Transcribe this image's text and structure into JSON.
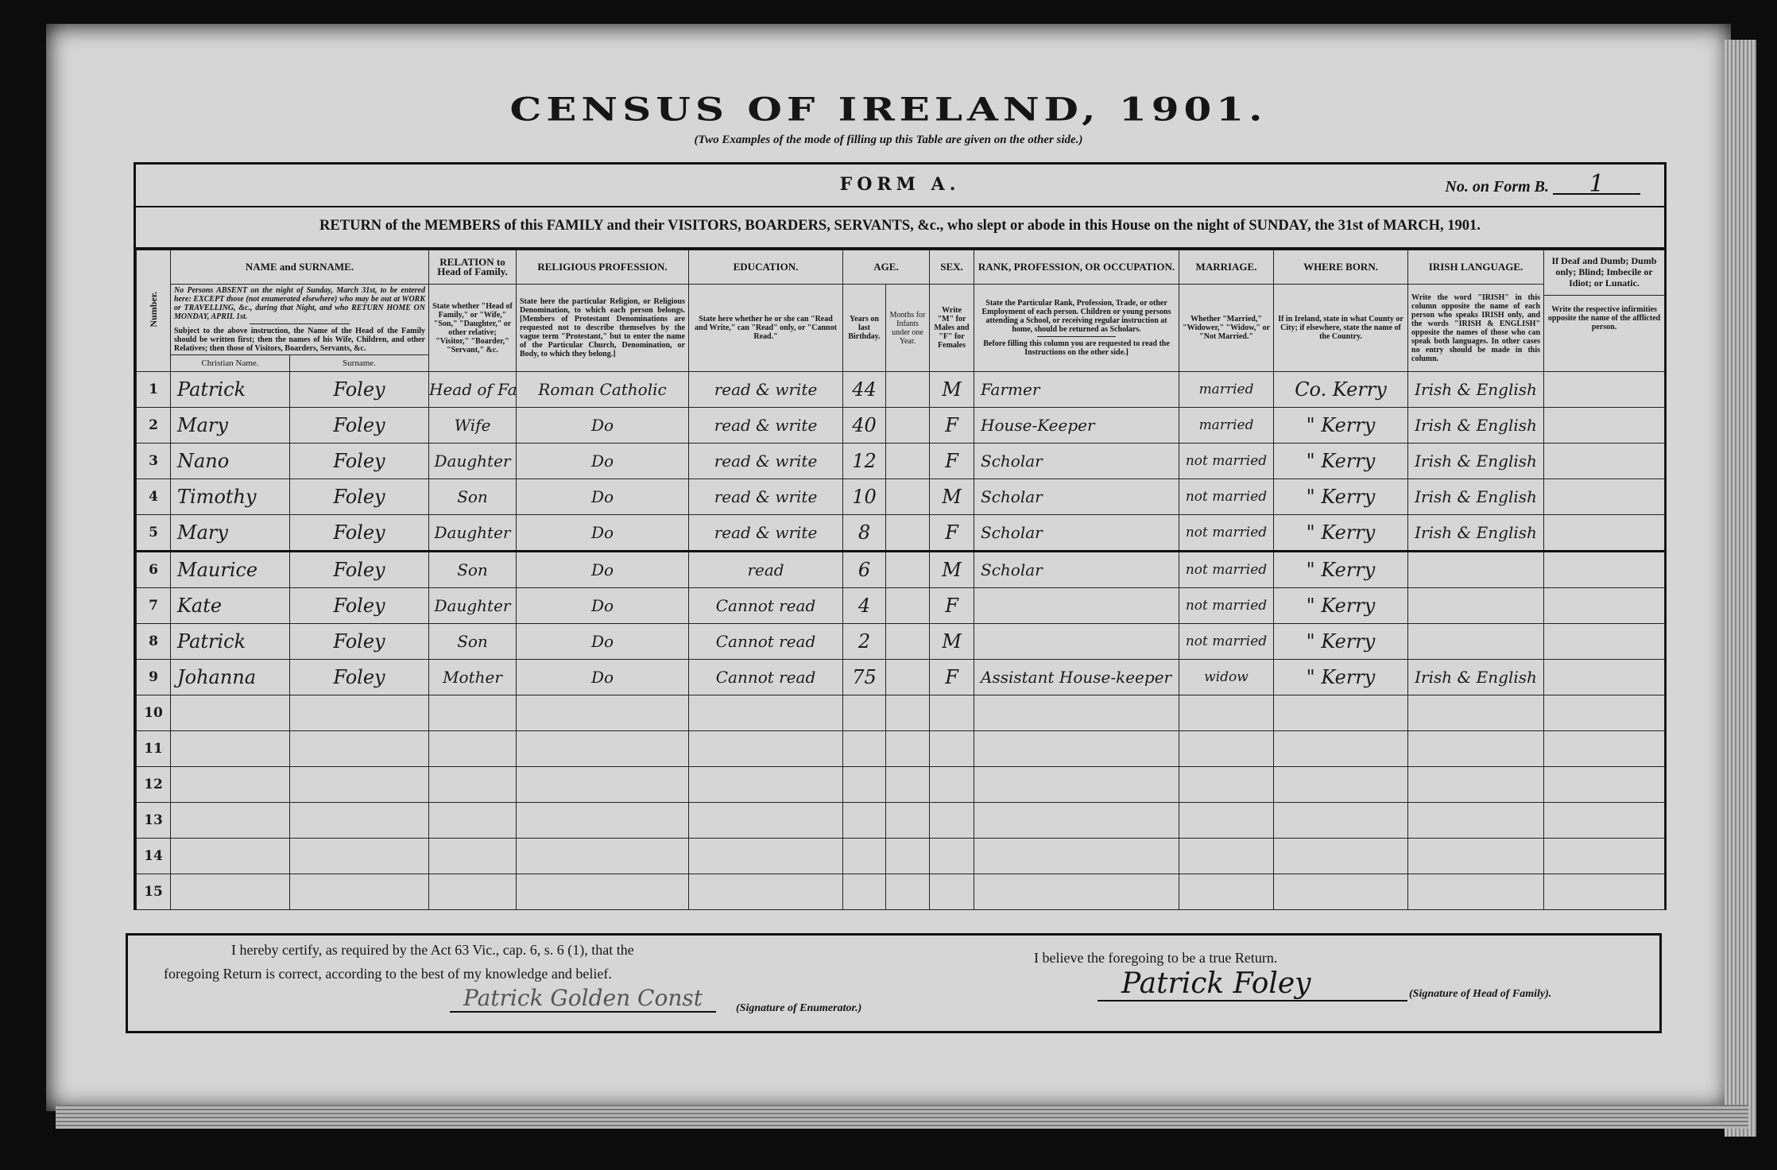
{
  "title": "CENSUS OF IRELAND, 1901.",
  "subtitle": "(Two Examples of the mode of filling up this Table are given on the other side.)",
  "form": {
    "name": "FORM A.",
    "form_b_label": "No. on Form B.",
    "form_b_value": "1",
    "return_line": "RETURN of the MEMBERS of this FAMILY and their VISITORS, BOARDERS, SERVANTS, &c., who slept or abode in this House on the night of SUNDAY, the 31st of MARCH, 1901."
  },
  "headers": {
    "number": "Number.",
    "name": "NAME and SURNAME.",
    "name_instr_1": "No Persons ABSENT on the night of Sunday, March 31st, to be entered here: EXCEPT those (not enumerated elsewhere) who may be out at WORK or TRAVELLING, &c., during that Night, and who RETURN HOME ON MONDAY, APRIL 1st.",
    "name_instr_2": "Subject to the above instruction, the Name of the Head of the Family should be written first; then the names of his Wife, Children, and other Relatives; then those of Visitors, Boarders, Servants, &c.",
    "christian_name": "Christian Name.",
    "surname": "Surname.",
    "relation": "RELATION to Head of Family.",
    "relation_instr": "State whether \"Head of Family,\" or \"Wife,\" \"Son,\" \"Daughter,\" or other relative; \"Visitor,\" \"Boarder,\" \"Servant,\" &c.",
    "religion": "RELIGIOUS PROFESSION.",
    "religion_instr": "State here the particular Religion, or Religious Denomination, to which each person belongs. [Members of Protestant Denominations are requested not to describe themselves by the vague term \"Protestant,\" but to enter the name of the Particular Church, Denomination, or Body, to which they belong.]",
    "education": "EDUCATION.",
    "education_instr": "State here whether he or she can \"Read and Write,\" can \"Read\" only, or \"Cannot Read.\"",
    "age": "AGE.",
    "age_years": "Years on last Birthday.",
    "age_months": "Months for Infants under one Year.",
    "sex": "SEX.",
    "sex_instr": "Write \"M\" for Males and \"F\" for Females",
    "rank": "RANK, PROFESSION, OR OCCUPATION.",
    "rank_instr_1": "State the Particular Rank, Profession, Trade, or other Employment of each person. Children or young persons attending a School, or receiving regular instruction at home, should be returned as Scholars.",
    "rank_instr_2": "Before filling this column you are requested to read the Instructions on the other side.]",
    "marriage": "MARRIAGE.",
    "marriage_instr": "Whether \"Married,\" \"Widower,\" \"Widow,\" or \"Not Married.\"",
    "born": "WHERE BORN.",
    "born_instr": "If in Ireland, state in what County or City; if elsewhere, state the name of the Country.",
    "irish": "IRISH LANGUAGE.",
    "irish_instr": "Write the word \"IRISH\" in this column opposite the name of each person who speaks IRISH only, and the words \"IRISH & ENGLISH\" opposite the names of those who can speak both languages. In other cases no entry should be made in this column.",
    "infirm": "If Deaf and Dumb; Dumb only; Blind; Imbecile or Idiot; or Lunatic.",
    "infirm_instr": "Write the respective infirmities opposite the name of the afflicted person."
  },
  "rows": [
    {
      "no": "1",
      "first": "Patrick",
      "surname": "Foley",
      "relation": "Head of Family",
      "religion": "Roman Catholic",
      "education": "read & write",
      "years": "44",
      "months": "",
      "sex": "M",
      "occupation": "Farmer",
      "marriage": "married",
      "born": "Co. Kerry",
      "irish": "Irish & English",
      "infirm": ""
    },
    {
      "no": "2",
      "first": "Mary",
      "surname": "Foley",
      "relation": "Wife",
      "religion": "Do",
      "education": "read & write",
      "years": "40",
      "months": "",
      "sex": "F",
      "occupation": "House-Keeper",
      "marriage": "married",
      "born": "\" Kerry",
      "irish": "Irish & English",
      "infirm": ""
    },
    {
      "no": "3",
      "first": "Nano",
      "surname": "Foley",
      "relation": "Daughter",
      "religion": "Do",
      "education": "read & write",
      "years": "12",
      "months": "",
      "sex": "F",
      "occupation": "Scholar",
      "marriage": "not married",
      "born": "\" Kerry",
      "irish": "Irish & English",
      "infirm": ""
    },
    {
      "no": "4",
      "first": "Timothy",
      "surname": "Foley",
      "relation": "Son",
      "religion": "Do",
      "education": "read & write",
      "years": "10",
      "months": "",
      "sex": "M",
      "occupation": "Scholar",
      "marriage": "not married",
      "born": "\" Kerry",
      "irish": "Irish & English",
      "infirm": ""
    },
    {
      "no": "5",
      "first": "Mary",
      "surname": "Foley",
      "relation": "Daughter",
      "religion": "Do",
      "education": "read & write",
      "years": "8",
      "months": "",
      "sex": "F",
      "occupation": "Scholar",
      "marriage": "not married",
      "born": "\" Kerry",
      "irish": "Irish & English",
      "infirm": ""
    },
    {
      "no": "6",
      "first": "Maurice",
      "surname": "Foley",
      "relation": "Son",
      "religion": "Do",
      "education": "read",
      "years": "6",
      "months": "",
      "sex": "M",
      "occupation": "Scholar",
      "marriage": "not married",
      "born": "\" Kerry",
      "irish": "",
      "infirm": ""
    },
    {
      "no": "7",
      "first": "Kate",
      "surname": "Foley",
      "relation": "Daughter",
      "religion": "Do",
      "education": "Cannot read",
      "years": "4",
      "months": "",
      "sex": "F",
      "occupation": "",
      "marriage": "not married",
      "born": "\" Kerry",
      "irish": "",
      "infirm": ""
    },
    {
      "no": "8",
      "first": "Patrick",
      "surname": "Foley",
      "relation": "Son",
      "religion": "Do",
      "education": "Cannot read",
      "years": "2",
      "months": "",
      "sex": "M",
      "occupation": "",
      "marriage": "not married",
      "born": "\" Kerry",
      "irish": "",
      "infirm": ""
    },
    {
      "no": "9",
      "first": "Johanna",
      "surname": "Foley",
      "relation": "Mother",
      "religion": "Do",
      "education": "Cannot read",
      "years": "75",
      "months": "",
      "sex": "F",
      "occupation": "Assistant House-keeper",
      "marriage": "widow",
      "born": "\" Kerry",
      "irish": "Irish & English",
      "infirm": ""
    },
    {
      "no": "10"
    },
    {
      "no": "11"
    },
    {
      "no": "12"
    },
    {
      "no": "13"
    },
    {
      "no": "14"
    },
    {
      "no": "15"
    }
  ],
  "certification": {
    "enumerator_line_1": "I hereby certify, as required by the Act 63 Vic., cap. 6, s. 6 (1), that the",
    "enumerator_line_2": "foregoing Return is correct, according to the best of my knowledge and belief.",
    "enumerator_signature": "Patrick Golden Const",
    "enumerator_label": "(Signature of Enumerator.)",
    "head_statement": "I believe the foregoing to be a true Return.",
    "head_signature": "Patrick Foley",
    "head_label": "(Signature of Head of Family)."
  }
}
